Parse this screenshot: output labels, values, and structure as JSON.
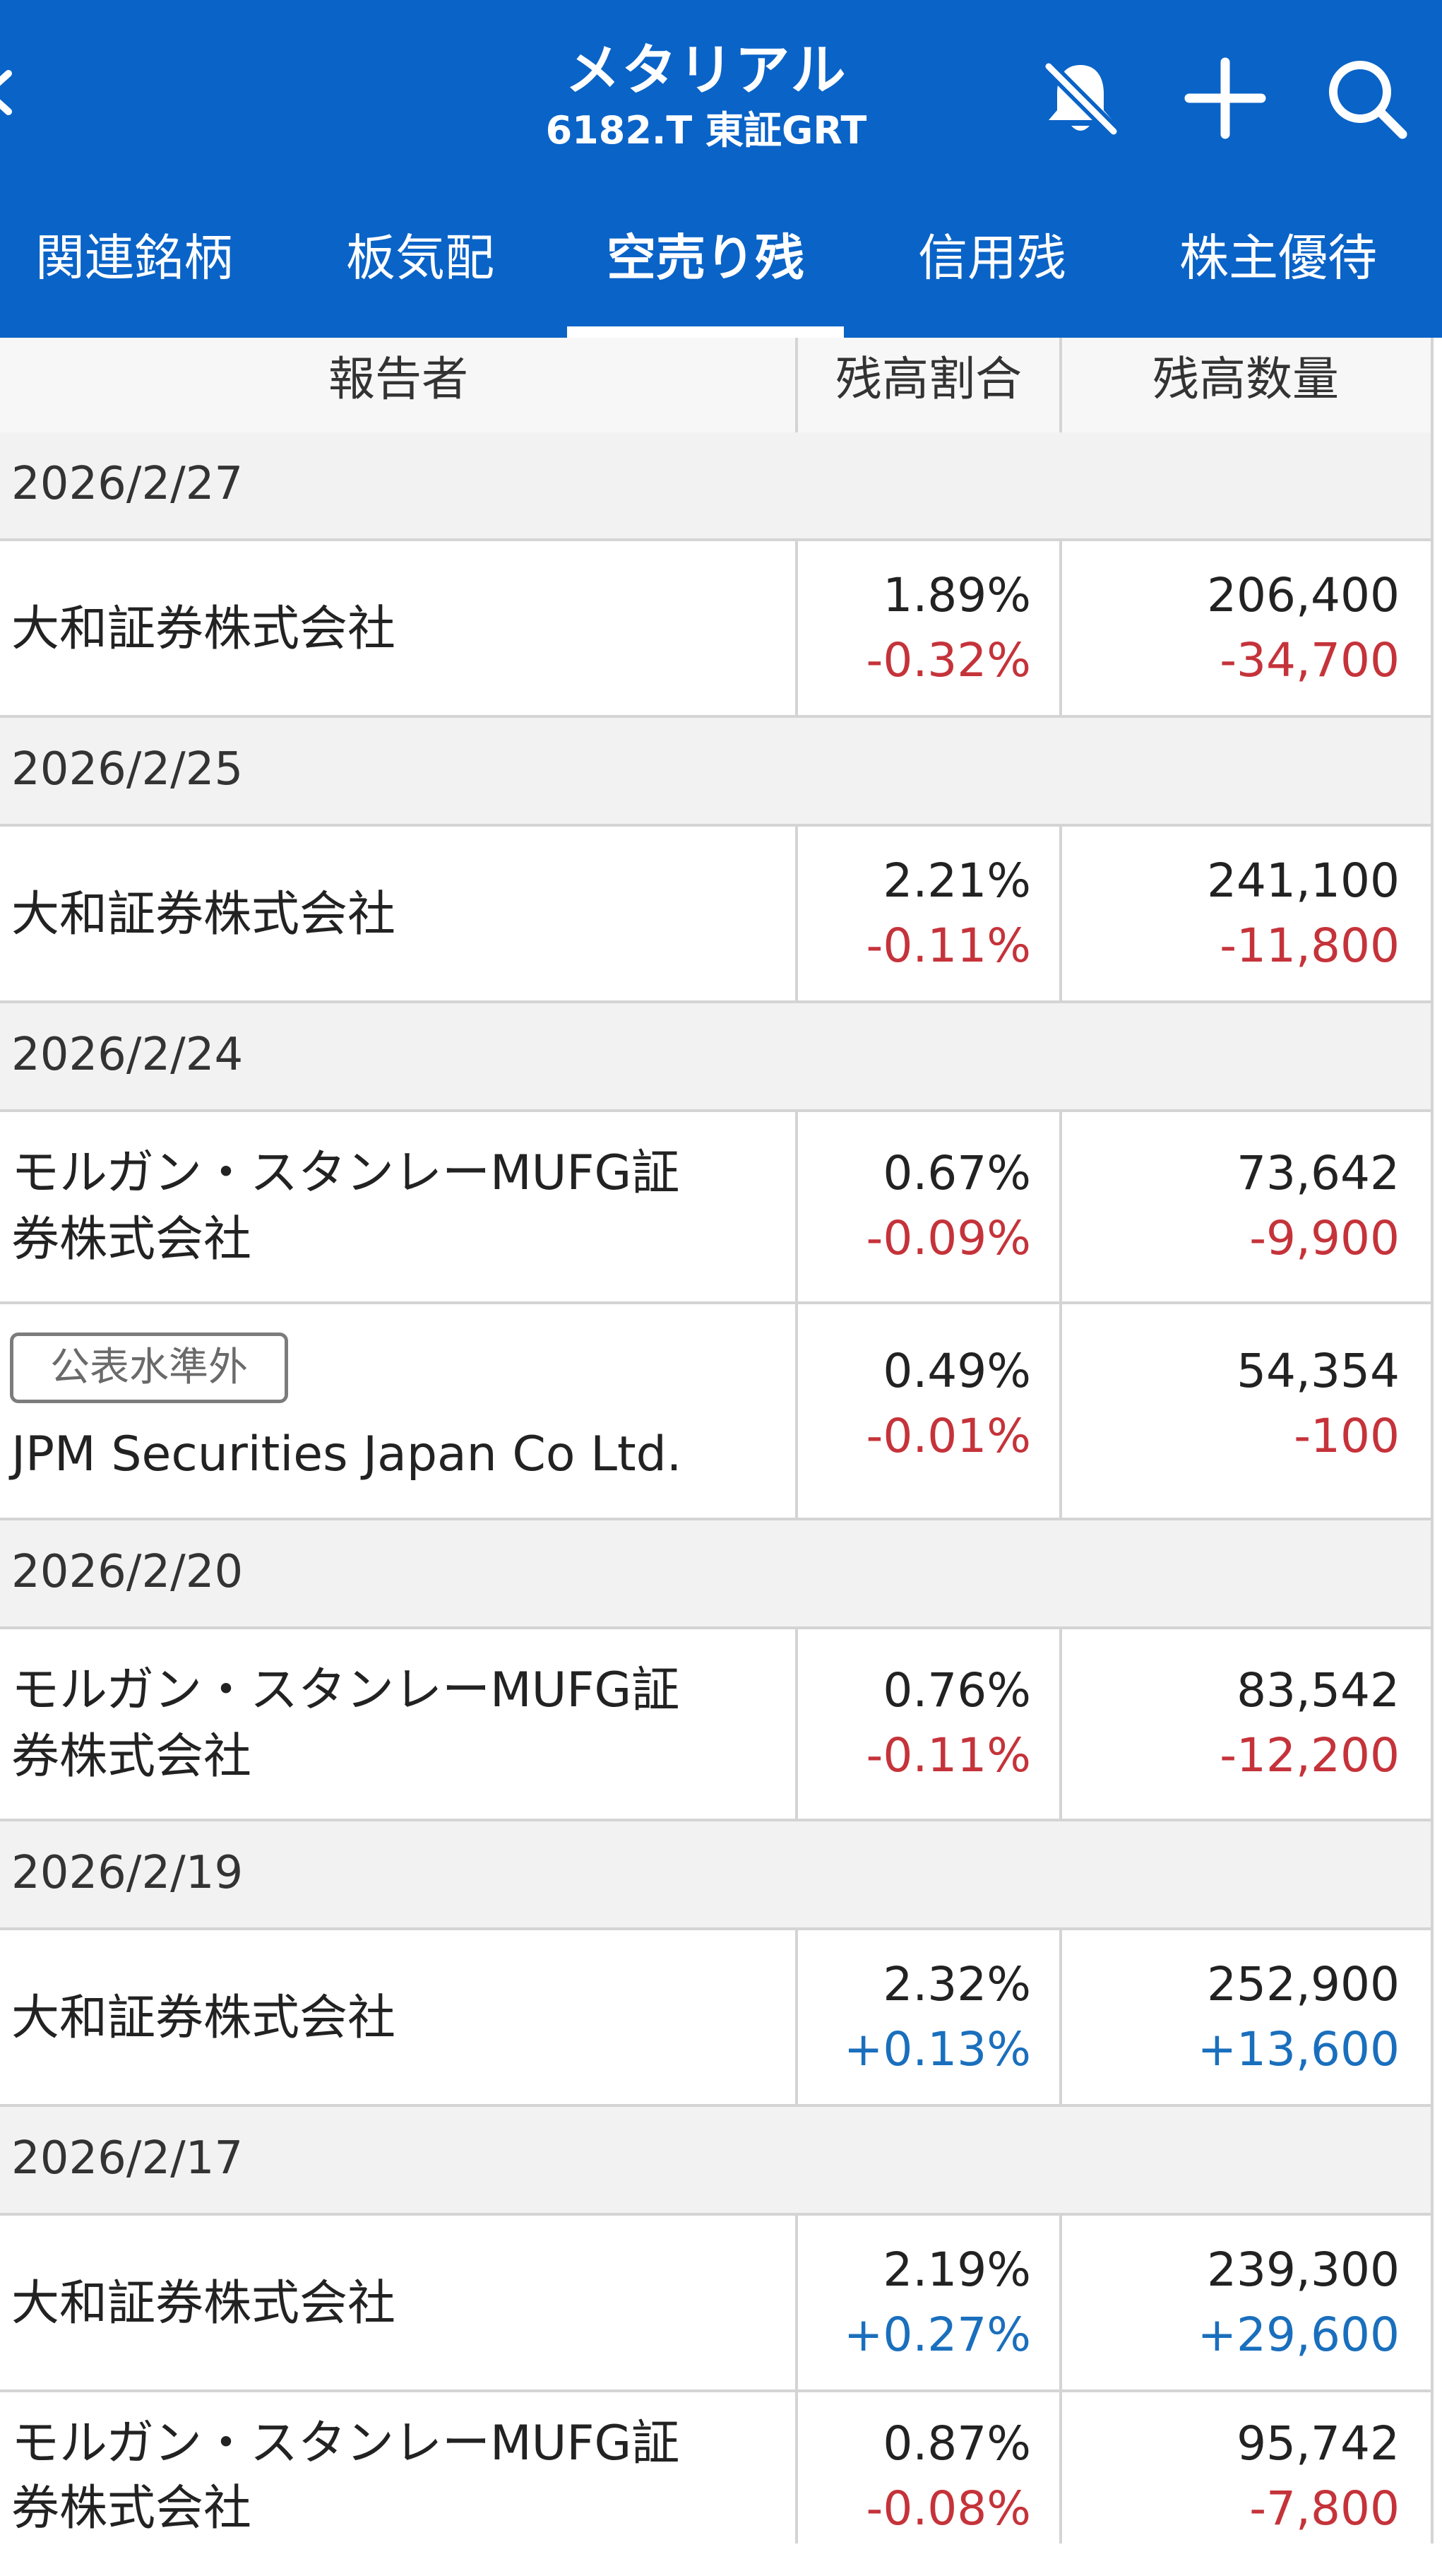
{
  "header": {
    "title": "メタリアル",
    "code": "6182.T 東証GRT"
  },
  "colors": {
    "brand": "#0a63c7",
    "negative": "#c5333a",
    "positive": "#1a6fbd"
  },
  "icons": [
    "back-icon",
    "bell-off-icon",
    "plus-icon",
    "search-icon"
  ],
  "tabs": [
    {
      "label": "関連銘柄",
      "active": false
    },
    {
      "label": "板気配",
      "active": false
    },
    {
      "label": "空売り残",
      "active": true
    },
    {
      "label": "信用残",
      "active": false
    },
    {
      "label": "株主優待",
      "active": false
    }
  ],
  "table": {
    "headers": {
      "reporter": "報告者",
      "ratio": "残高割合",
      "quantity": "残高数量"
    },
    "groups": [
      {
        "date": "2026/2/27",
        "rows": [
          {
            "reporter": "大和証券株式会社",
            "ratio": "1.89%",
            "ratio_change": "-0.32%",
            "quantity": "206,400",
            "quantity_change": "-34,700"
          }
        ]
      },
      {
        "date": "2026/2/25",
        "rows": [
          {
            "reporter": "大和証券株式会社",
            "ratio": "2.21%",
            "ratio_change": "-0.11%",
            "quantity": "241,100",
            "quantity_change": "-11,800"
          }
        ]
      },
      {
        "date": "2026/2/24",
        "rows": [
          {
            "reporter_line1": "モルガン・スタンレーMUFG証",
            "reporter_line2": "券株式会社",
            "ratio": "0.67%",
            "ratio_change": "-0.09%",
            "quantity": "73,642",
            "quantity_change": "-9,900"
          },
          {
            "badge": "公表水準外",
            "reporter": "JPM Securities Japan Co Ltd.",
            "ratio": "0.49%",
            "ratio_change": "-0.01%",
            "quantity": "54,354",
            "quantity_change": "-100"
          }
        ]
      },
      {
        "date": "2026/2/20",
        "rows": [
          {
            "reporter_line1": "モルガン・スタンレーMUFG証",
            "reporter_line2": "券株式会社",
            "ratio": "0.76%",
            "ratio_change": "-0.11%",
            "quantity": "83,542",
            "quantity_change": "-12,200"
          }
        ]
      },
      {
        "date": "2026/2/19",
        "rows": [
          {
            "reporter": "大和証券株式会社",
            "ratio": "2.32%",
            "ratio_change": "+0.13%",
            "quantity": "252,900",
            "quantity_change": "+13,600"
          }
        ]
      },
      {
        "date": "2026/2/17",
        "rows": [
          {
            "reporter": "大和証券株式会社",
            "ratio": "2.19%",
            "ratio_change": "+0.27%",
            "quantity": "239,300",
            "quantity_change": "+29,600"
          },
          {
            "reporter_line1": "モルガン・スタンレーMUFG証",
            "reporter_line2": "券株式会社",
            "ratio": "0.87%",
            "ratio_change": "-0.08%",
            "quantity": "95,742",
            "quantity_change": "-7,800"
          }
        ]
      }
    ]
  }
}
